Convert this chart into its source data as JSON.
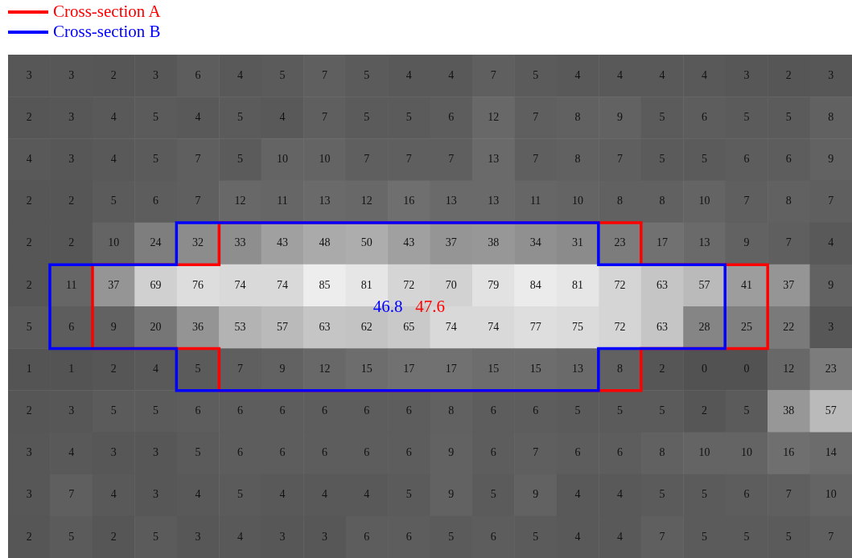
{
  "chart_data": {
    "type": "heatmap",
    "categories": [
      null,
      null,
      null,
      null,
      null,
      null,
      null,
      null,
      null,
      null,
      null,
      null,
      null,
      null,
      null,
      null,
      null,
      null,
      null,
      null
    ],
    "y_categories": [
      null,
      null,
      null,
      null,
      null,
      null,
      null,
      null,
      null,
      null,
      null,
      null
    ],
    "cells": [
      [
        3,
        3,
        2,
        3,
        6,
        4,
        5,
        7,
        5,
        4,
        4,
        7,
        5,
        4,
        4,
        4,
        4,
        3,
        2,
        3
      ],
      [
        2,
        3,
        4,
        5,
        4,
        5,
        4,
        7,
        5,
        5,
        6,
        12,
        7,
        8,
        9,
        5,
        6,
        5,
        5,
        8
      ],
      [
        4,
        3,
        4,
        5,
        7,
        5,
        10,
        10,
        7,
        7,
        7,
        13,
        7,
        8,
        7,
        5,
        5,
        6,
        6,
        9
      ],
      [
        2,
        2,
        5,
        6,
        7,
        12,
        11,
        13,
        12,
        16,
        13,
        13,
        11,
        10,
        8,
        8,
        10,
        7,
        8,
        7
      ],
      [
        2,
        2,
        10,
        24,
        32,
        33,
        43,
        48,
        50,
        43,
        37,
        38,
        34,
        31,
        23,
        17,
        13,
        9,
        7,
        4
      ],
      [
        2,
        11,
        37,
        69,
        76,
        74,
        74,
        85,
        81,
        72,
        70,
        79,
        84,
        81,
        72,
        63,
        57,
        41,
        37,
        9
      ],
      [
        5,
        6,
        9,
        20,
        36,
        53,
        57,
        63,
        62,
        65,
        74,
        74,
        77,
        75,
        72,
        63,
        28,
        25,
        22,
        3
      ],
      [
        1,
        1,
        2,
        4,
        5,
        7,
        9,
        12,
        15,
        17,
        17,
        15,
        15,
        13,
        8,
        2,
        0,
        0,
        12,
        23
      ],
      [
        2,
        3,
        5,
        5,
        6,
        6,
        6,
        6,
        6,
        6,
        8,
        6,
        6,
        5,
        5,
        5,
        2,
        5,
        38,
        57
      ],
      [
        3,
        4,
        3,
        3,
        5,
        6,
        6,
        6,
        6,
        6,
        9,
        6,
        7,
        6,
        6,
        8,
        10,
        10,
        16,
        14
      ],
      [
        3,
        7,
        4,
        3,
        4,
        5,
        4,
        4,
        4,
        5,
        9,
        5,
        9,
        4,
        4,
        5,
        5,
        6,
        7,
        10
      ],
      [
        2,
        5,
        2,
        5,
        3,
        4,
        3,
        3,
        6,
        6,
        5,
        6,
        5,
        4,
        4,
        7,
        5,
        5,
        5,
        7
      ]
    ],
    "data_labels": true,
    "tick_labels": false,
    "annotations": [
      "Cross-section A",
      "Cross-section B",
      "46.8",
      "47.6"
    ]
  }
}
